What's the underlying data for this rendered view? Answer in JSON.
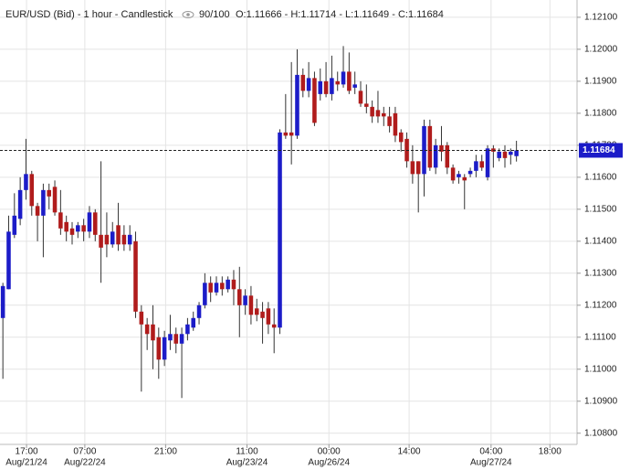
{
  "chart_data": {
    "type": "candlestick",
    "title": "EUR/USD (Bid) - 1 hour - Candlestick",
    "counter": "90/100",
    "info": "O:1.11666 - H:1.11714 - L:1.11649 - C:1.11684",
    "up_color": "#1c1cc8",
    "down_color": "#b01c1c",
    "grid": true,
    "xlim": [
      -0.5,
      99.5
    ],
    "xticks": [
      {
        "value": 4.1,
        "label": "17:00"
      },
      {
        "value": 14.2,
        "label": "07:00"
      },
      {
        "value": 28.2,
        "label": "21:00"
      },
      {
        "value": 42.3,
        "label": "11:00"
      },
      {
        "value": 56.5,
        "label": "00:00"
      },
      {
        "value": 70.4,
        "label": "14:00"
      },
      {
        "value": 84.6,
        "label": "04:00"
      },
      {
        "value": 94.8,
        "label": "18:00"
      }
    ],
    "xtick_dates": [
      "Aug/21/24",
      "Aug/22/24",
      null,
      "Aug/23/24",
      "Aug/26/24",
      null,
      "Aug/27/24",
      null
    ],
    "ylim": [
      1.10765,
      1.12154
    ],
    "yticks": [
      {
        "value": 1.108,
        "label": "1.10800"
      },
      {
        "value": 1.109,
        "label": "1.10900"
      },
      {
        "value": 1.11,
        "label": "1.11000"
      },
      {
        "value": 1.111,
        "label": "1.11100"
      },
      {
        "value": 1.112,
        "label": "1.11200"
      },
      {
        "value": 1.113,
        "label": "1.11300"
      },
      {
        "value": 1.114,
        "label": "1.11400"
      },
      {
        "value": 1.115,
        "label": "1.11500"
      },
      {
        "value": 1.116,
        "label": "1.11600"
      },
      {
        "value": 1.117,
        "label": "1.11700"
      },
      {
        "value": 1.118,
        "label": "1.11800"
      },
      {
        "value": 1.119,
        "label": "1.11900"
      },
      {
        "value": 1.12,
        "label": "1.12000"
      },
      {
        "value": 1.121,
        "label": "1.12100"
      }
    ],
    "last_price": {
      "value": 1.11684,
      "label": "1.11684"
    },
    "open": [
      1.1116,
      1.1125,
      1.1142,
      1.1147,
      1.1156,
      1.1161,
      1.1151,
      1.1148,
      1.1156,
      1.1157,
      1.1149,
      1.1146,
      1.1144,
      1.1143,
      1.1145,
      1.1143,
      1.1149,
      1.1142,
      1.1142,
      1.1139,
      1.1145,
      1.1142,
      1.1139,
      1.114,
      1.1118,
      1.1114,
      1.1114,
      1.111,
      1.1103,
      1.1109,
      1.1111,
      1.1108,
      1.1111,
      1.1113,
      1.1116,
      1.112,
      1.1127,
      1.1124,
      1.1127,
      1.1125,
      1.1128,
      1.1125,
      1.112,
      1.1123,
      1.1119,
      1.1118,
      1.1119,
      1.1114,
      1.1113,
      1.1174,
      1.1174,
      1.1173,
      1.1192,
      1.1187,
      1.1191,
      1.1186,
      1.119,
      1.1186,
      1.119,
      1.1189,
      1.1193,
      1.1188,
      1.1187,
      1.1183,
      1.1182,
      1.1181,
      1.118,
      1.1179,
      1.118,
      1.1174,
      1.1172,
      1.1165,
      1.1165,
      1.1161,
      1.1176,
      1.1163,
      1.117,
      1.117,
      1.1163,
      1.116,
      1.116,
      1.1161,
      1.1162,
      1.1165,
      1.116,
      1.1169,
      1.1166,
      1.1168,
      1.1167,
      1.11666
    ],
    "high": [
      1.1127,
      1.1148,
      1.1155,
      1.116,
      1.1172,
      1.1162,
      1.1152,
      1.1158,
      1.1158,
      1.1159,
      1.1156,
      1.1148,
      1.1146,
      1.1146,
      1.1147,
      1.1151,
      1.115,
      1.1165,
      1.1149,
      1.1146,
      1.1152,
      1.1145,
      1.1145,
      1.1143,
      1.112,
      1.1116,
      1.112,
      1.1113,
      1.1112,
      1.1117,
      1.1113,
      1.1113,
      1.1116,
      1.1118,
      1.1121,
      1.113,
      1.1129,
      1.1129,
      1.1129,
      1.1129,
      1.1131,
      1.1132,
      1.1125,
      1.1126,
      1.1122,
      1.1121,
      1.1121,
      1.1119,
      1.1175,
      1.1186,
      1.1196,
      1.12,
      1.1194,
      1.1196,
      1.1193,
      1.1194,
      1.1196,
      1.1198,
      1.1193,
      1.1201,
      1.1199,
      1.1193,
      1.119,
      1.1189,
      1.1184,
      1.1187,
      1.1182,
      1.1182,
      1.1182,
      1.1175,
      1.1174,
      1.117,
      1.1165,
      1.1178,
      1.1178,
      1.1172,
      1.1176,
      1.1171,
      1.1164,
      1.1162,
      1.1161,
      1.1163,
      1.1167,
      1.1167,
      1.117,
      1.117,
      1.1169,
      1.117,
      1.1169,
      1.11714
    ],
    "low": [
      1.1097,
      1.1125,
      1.1141,
      1.1145,
      1.1153,
      1.1148,
      1.114,
      1.1135,
      1.115,
      1.1148,
      1.1142,
      1.114,
      1.1139,
      1.1141,
      1.114,
      1.1141,
      1.114,
      1.1127,
      1.1135,
      1.1138,
      1.1137,
      1.1137,
      1.1137,
      1.1116,
      1.1093,
      1.1106,
      1.11,
      1.1097,
      1.1101,
      1.1106,
      1.1105,
      1.1091,
      1.1109,
      1.1112,
      1.1114,
      1.1119,
      1.1121,
      1.1123,
      1.1123,
      1.1124,
      1.112,
      1.111,
      1.1117,
      1.1114,
      1.1115,
      1.1108,
      1.1111,
      1.1105,
      1.1111,
      1.1172,
      1.1164,
      1.1172,
      1.1185,
      1.1185,
      1.1176,
      1.1184,
      1.1185,
      1.1184,
      1.1187,
      1.1188,
      1.1186,
      1.1186,
      1.1182,
      1.118,
      1.1177,
      1.1177,
      1.1176,
      1.1174,
      1.1171,
      1.1168,
      1.1163,
      1.1158,
      1.1149,
      1.1154,
      1.1162,
      1.1161,
      1.1165,
      1.1161,
      1.1158,
      1.1158,
      1.115,
      1.116,
      1.116,
      1.1162,
      1.1159,
      1.1163,
      1.1165,
      1.1163,
      1.1164,
      1.11649
    ],
    "close": [
      1.1126,
      1.1143,
      1.1148,
      1.1156,
      1.1161,
      1.1151,
      1.1148,
      1.1156,
      1.1154,
      1.1149,
      1.1144,
      1.1143,
      1.1142,
      1.1145,
      1.1143,
      1.1149,
      1.1142,
      1.1138,
      1.1139,
      1.1143,
      1.1139,
      1.1139,
      1.1142,
      1.1118,
      1.1114,
      1.1111,
      1.1109,
      1.1103,
      1.111,
      1.1111,
      1.1108,
      1.1111,
      1.1114,
      1.1116,
      1.112,
      1.1127,
      1.1124,
      1.1127,
      1.1125,
      1.1128,
      1.1125,
      1.112,
      1.1123,
      1.1117,
      1.1117,
      1.1116,
      1.1114,
      1.1113,
      1.1174,
      1.1173,
      1.1173,
      1.1192,
      1.1187,
      1.1191,
      1.1177,
      1.119,
      1.1186,
      1.1191,
      1.1189,
      1.1193,
      1.1187,
      1.1189,
      1.1183,
      1.1182,
      1.1179,
      1.1179,
      1.1179,
      1.1176,
      1.1173,
      1.1171,
      1.1165,
      1.1161,
      1.1161,
      1.1176,
      1.1163,
      1.117,
      1.1168,
      1.1163,
      1.1159,
      1.1161,
      1.1159,
      1.1162,
      1.1165,
      1.1163,
      1.1169,
      1.1168,
      1.1168,
      1.1166,
      1.1168,
      1.11684
    ]
  }
}
